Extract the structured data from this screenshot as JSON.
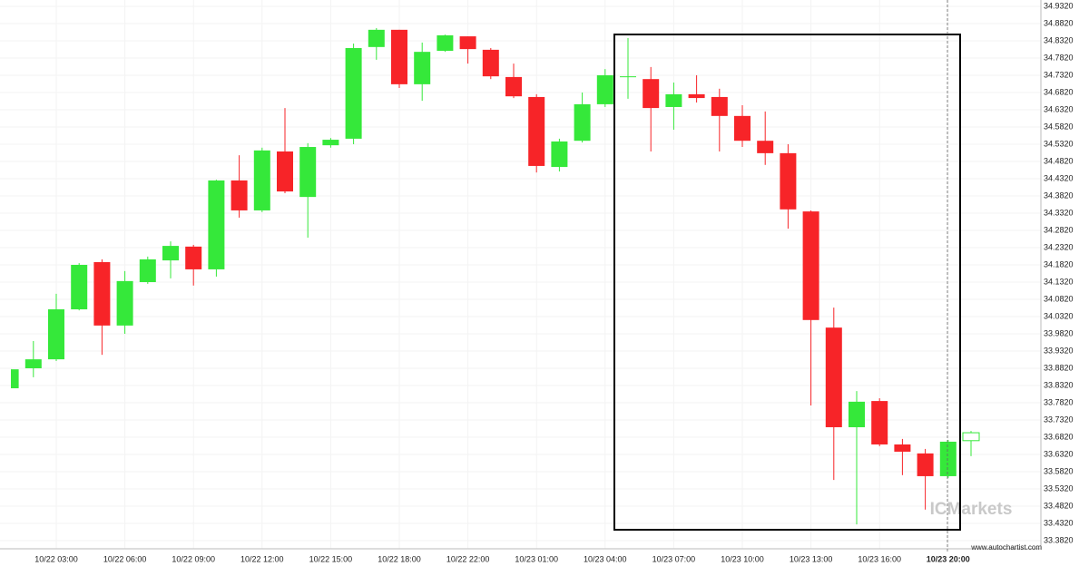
{
  "chart_data": {
    "type": "candlestick",
    "categories": [
      null,
      null,
      "10/22 03:00",
      null,
      null,
      "10/22 06:00",
      null,
      null,
      "10/22 09:00",
      null,
      null,
      "10/22 12:00",
      null,
      null,
      "10/22 15:00",
      null,
      null,
      "10/22 18:00",
      null,
      null,
      "10/22 22:00",
      null,
      null,
      "10/23 01:00",
      null,
      null,
      "10/23 04:00",
      null,
      null,
      "10/23 07:00",
      null,
      null,
      "10/23 10:00",
      null,
      null,
      "10/23 13:00",
      null,
      null,
      "10/23 16:00",
      null,
      null,
      "10/23 20:00",
      null
    ],
    "open": [
      33.824,
      33.882,
      33.908,
      34.053,
      34.19,
      34.006,
      34.132,
      34.195,
      34.235,
      34.169,
      34.427,
      34.34,
      34.511,
      34.379,
      34.529,
      34.548,
      34.814,
      34.864,
      34.706,
      34.803,
      34.845,
      34.806,
      34.727,
      34.669,
      34.466,
      34.542,
      34.648,
      34.727,
      34.721,
      34.64,
      34.677,
      34.669,
      34.614,
      34.542,
      34.506,
      34.337,
      34.0,
      33.711,
      33.787,
      33.661,
      33.635,
      33.569,
      33.672
    ],
    "high": [
      33.882,
      33.961,
      34.098,
      34.187,
      34.198,
      34.164,
      34.206,
      34.25,
      34.24,
      34.429,
      34.5,
      34.522,
      34.637,
      34.535,
      34.55,
      34.824,
      34.869,
      34.864,
      34.827,
      34.85,
      34.845,
      34.811,
      34.766,
      34.677,
      34.548,
      34.682,
      34.75,
      34.84,
      34.756,
      34.711,
      34.732,
      34.693,
      34.645,
      34.627,
      34.532,
      34.34,
      34.058,
      33.816,
      33.795,
      33.677,
      33.648,
      33.674,
      33.7
    ],
    "low": [
      33.824,
      33.856,
      33.903,
      34.05,
      33.921,
      33.982,
      34.127,
      34.143,
      34.122,
      34.148,
      34.319,
      34.335,
      34.39,
      34.261,
      34.522,
      34.532,
      34.777,
      34.695,
      34.658,
      34.8,
      34.766,
      34.721,
      34.666,
      34.45,
      34.453,
      34.537,
      34.64,
      34.664,
      34.511,
      34.574,
      34.653,
      34.511,
      34.524,
      34.472,
      34.287,
      33.774,
      33.558,
      33.429,
      33.656,
      33.572,
      33.472,
      33.564,
      33.627
    ],
    "close": [
      33.879,
      33.908,
      34.053,
      34.182,
      34.006,
      34.135,
      34.198,
      34.237,
      34.169,
      34.427,
      34.34,
      34.514,
      34.395,
      34.524,
      34.545,
      34.811,
      34.864,
      34.706,
      34.8,
      34.848,
      34.808,
      34.729,
      34.671,
      34.469,
      34.54,
      34.648,
      34.732,
      34.729,
      34.637,
      34.677,
      34.666,
      34.614,
      34.542,
      34.506,
      34.343,
      34.022,
      33.711,
      33.785,
      33.661,
      33.64,
      33.569,
      33.669,
      33.695
    ],
    "up_color": "#35e83a",
    "down_color": "#f72428",
    "ylim": [
      33.382,
      34.932
    ],
    "yticks": [
      {
        "value": 33.382,
        "label": "33.3820"
      },
      {
        "value": 33.432,
        "label": "33.4320"
      },
      {
        "value": 33.482,
        "label": "33.4820"
      },
      {
        "value": 33.532,
        "label": "33.5320"
      },
      {
        "value": 33.582,
        "label": "33.5820"
      },
      {
        "value": 33.632,
        "label": "33.6320"
      },
      {
        "value": 33.682,
        "label": "33.6820"
      },
      {
        "value": 33.732,
        "label": "33.7320"
      },
      {
        "value": 33.782,
        "label": "33.7820"
      },
      {
        "value": 33.832,
        "label": "33.8320"
      },
      {
        "value": 33.882,
        "label": "33.8820"
      },
      {
        "value": 33.932,
        "label": "33.9320"
      },
      {
        "value": 33.982,
        "label": "33.9820"
      },
      {
        "value": 34.032,
        "label": "34.0320"
      },
      {
        "value": 34.082,
        "label": "34.0820"
      },
      {
        "value": 34.132,
        "label": "34.1320"
      },
      {
        "value": 34.182,
        "label": "34.1820"
      },
      {
        "value": 34.232,
        "label": "34.2320"
      },
      {
        "value": 34.282,
        "label": "34.2820"
      },
      {
        "value": 34.332,
        "label": "34.3320"
      },
      {
        "value": 34.382,
        "label": "34.3820"
      },
      {
        "value": 34.432,
        "label": "34.4320"
      },
      {
        "value": 34.482,
        "label": "34.4820"
      },
      {
        "value": 34.532,
        "label": "34.5320"
      },
      {
        "value": 34.582,
        "label": "34.5820"
      },
      {
        "value": 34.632,
        "label": "34.6320"
      },
      {
        "value": 34.682,
        "label": "34.6820"
      },
      {
        "value": 34.732,
        "label": "34.7320"
      },
      {
        "value": 34.782,
        "label": "34.7820"
      },
      {
        "value": 34.832,
        "label": "34.8320"
      },
      {
        "value": 34.882,
        "label": "34.8820"
      },
      {
        "value": 34.932,
        "label": "34.9320"
      }
    ],
    "grid": true,
    "watermark": "ICMarkets",
    "source": "www.autochartist.com"
  }
}
